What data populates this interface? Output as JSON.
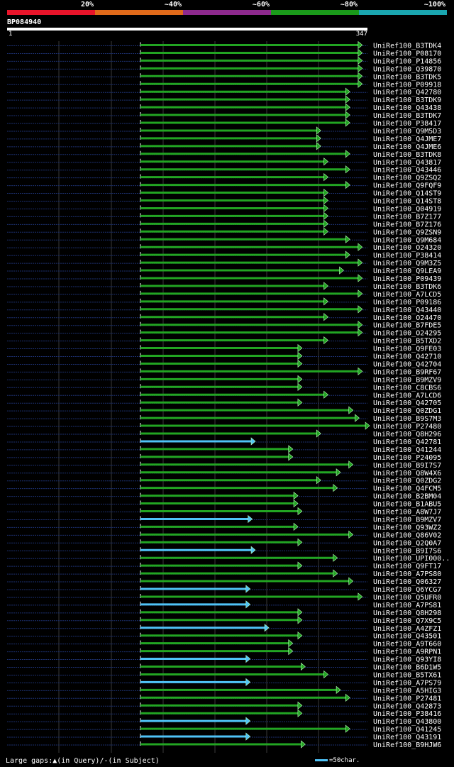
{
  "legend": {
    "segments": [
      {
        "color": "#e8142a"
      },
      {
        "color": "#e06a1a"
      },
      {
        "color": "#8e2a8e"
      },
      {
        "color": "#1a9a1a"
      },
      {
        "color": "#1aa6b0"
      }
    ],
    "labels": [
      "20%",
      "~40%",
      "~60%",
      "~80%",
      "~100%"
    ]
  },
  "query": {
    "name": "BP084940",
    "start": "1",
    "end": "347",
    "length": 347
  },
  "colors": {
    "green": "#22a522",
    "cyan": "#4fc3f7",
    "dotted": "#1c3070",
    "grid": "#3a3a3a"
  },
  "hits": [
    {
      "label": "UniRef100_B3TDK4",
      "end": 338,
      "color": "green"
    },
    {
      "label": "UniRef100_P08170",
      "end": 338,
      "color": "green"
    },
    {
      "label": "UniRef100_P14856",
      "end": 338,
      "color": "green"
    },
    {
      "label": "UniRef100_Q39870",
      "end": 338,
      "color": "green"
    },
    {
      "label": "UniRef100_B3TDK5",
      "end": 338,
      "color": "green"
    },
    {
      "label": "UniRef100_P09918",
      "end": 338,
      "color": "green"
    },
    {
      "label": "UniRef100_Q42780",
      "end": 326,
      "color": "green"
    },
    {
      "label": "UniRef100_B3TDK9",
      "end": 326,
      "color": "green"
    },
    {
      "label": "UniRef100_Q43438",
      "end": 326,
      "color": "green"
    },
    {
      "label": "UniRef100_B3TDK7",
      "end": 326,
      "color": "green"
    },
    {
      "label": "UniRef100_P38417",
      "end": 326,
      "color": "green"
    },
    {
      "label": "UniRef100_Q9M5D3",
      "end": 298,
      "color": "green"
    },
    {
      "label": "UniRef100_Q4JME7",
      "end": 298,
      "color": "green"
    },
    {
      "label": "UniRef100_Q4JME6",
      "end": 298,
      "color": "green"
    },
    {
      "label": "UniRef100_B3TDK8",
      "end": 326,
      "color": "green"
    },
    {
      "label": "UniRef100_Q43817",
      "end": 305,
      "color": "green"
    },
    {
      "label": "UniRef100_Q43446",
      "end": 326,
      "color": "green"
    },
    {
      "label": "UniRef100_Q9ZSQ2",
      "end": 305,
      "color": "green"
    },
    {
      "label": "UniRef100_Q9FQF9",
      "end": 326,
      "color": "green"
    },
    {
      "label": "UniRef100_Q14ST9",
      "end": 305,
      "color": "green"
    },
    {
      "label": "UniRef100_Q14ST8",
      "end": 305,
      "color": "green"
    },
    {
      "label": "UniRef100_Q04919",
      "end": 305,
      "color": "green"
    },
    {
      "label": "UniRef100_B7Z177",
      "end": 305,
      "color": "green"
    },
    {
      "label": "UniRef100_B7Z176",
      "end": 305,
      "color": "green"
    },
    {
      "label": "UniRef100_Q9ZSN9",
      "end": 305,
      "color": "green"
    },
    {
      "label": "UniRef100_Q9M684",
      "end": 326,
      "color": "green"
    },
    {
      "label": "UniRef100_O24320",
      "end": 338,
      "color": "green"
    },
    {
      "label": "UniRef100_P38414",
      "end": 326,
      "color": "green"
    },
    {
      "label": "UniRef100_Q9M3Z5",
      "end": 338,
      "color": "green"
    },
    {
      "label": "UniRef100_Q9LEA9",
      "end": 320,
      "color": "green"
    },
    {
      "label": "UniRef100_P09439",
      "end": 338,
      "color": "green"
    },
    {
      "label": "UniRef100_B3TDK6",
      "end": 305,
      "color": "green"
    },
    {
      "label": "UniRef100_A7LCD5",
      "end": 338,
      "color": "green"
    },
    {
      "label": "UniRef100_P09186",
      "end": 305,
      "color": "green"
    },
    {
      "label": "UniRef100_Q43440",
      "end": 338,
      "color": "green"
    },
    {
      "label": "UniRef100_O24470",
      "end": 305,
      "color": "green"
    },
    {
      "label": "UniRef100_B7FDE5",
      "end": 338,
      "color": "green"
    },
    {
      "label": "UniRef100_O24295",
      "end": 338,
      "color": "green"
    },
    {
      "label": "UniRef100_B5TXD2",
      "end": 305,
      "color": "green"
    },
    {
      "label": "UniRef100_Q9FE03",
      "end": 280,
      "color": "green"
    },
    {
      "label": "UniRef100_Q42710",
      "end": 280,
      "color": "green"
    },
    {
      "label": "UniRef100_Q42704",
      "end": 280,
      "color": "green"
    },
    {
      "label": "UniRef100_B9RF67",
      "end": 338,
      "color": "green"
    },
    {
      "label": "UniRef100_B9MZV9",
      "end": 280,
      "color": "green"
    },
    {
      "label": "UniRef100_C8CBS6",
      "end": 280,
      "color": "green"
    },
    {
      "label": "UniRef100_A7LCD6",
      "end": 305,
      "color": "green"
    },
    {
      "label": "UniRef100_Q42705",
      "end": 280,
      "color": "green"
    },
    {
      "label": "UniRef100_Q0ZDG1",
      "end": 329,
      "color": "green"
    },
    {
      "label": "UniRef100_B9S7M3",
      "end": 335,
      "color": "green"
    },
    {
      "label": "UniRef100_P27480",
      "end": 345,
      "color": "green"
    },
    {
      "label": "UniRef100_Q8H296",
      "end": 298,
      "color": "green"
    },
    {
      "label": "UniRef100_Q42781",
      "end": 235,
      "color": "cyan"
    },
    {
      "label": "UniRef100_Q41244",
      "end": 271,
      "color": "green"
    },
    {
      "label": "UniRef100_P24095",
      "end": 271,
      "color": "green"
    },
    {
      "label": "UniRef100_B9I7S7",
      "end": 329,
      "color": "green"
    },
    {
      "label": "UniRef100_Q8W4X6",
      "end": 317,
      "color": "green"
    },
    {
      "label": "UniRef100_Q0ZDG2",
      "end": 298,
      "color": "green"
    },
    {
      "label": "UniRef100_Q4FCM5",
      "end": 314,
      "color": "green"
    },
    {
      "label": "UniRef100_B2BM04",
      "end": 276,
      "color": "green"
    },
    {
      "label": "UniRef100_B1ABU5",
      "end": 276,
      "color": "green"
    },
    {
      "label": "UniRef100_A8W7J7",
      "end": 280,
      "color": "green"
    },
    {
      "label": "UniRef100_B9MZV7",
      "end": 232,
      "color": "cyan"
    },
    {
      "label": "UniRef100_Q93WZ2",
      "end": 276,
      "color": "green"
    },
    {
      "label": "UniRef100_Q86V02",
      "end": 329,
      "color": "green"
    },
    {
      "label": "UniRef100_Q2Q0A7",
      "end": 280,
      "color": "green"
    },
    {
      "label": "UniRef100_B9I7S6",
      "end": 235,
      "color": "cyan"
    },
    {
      "label": "UniRef100_UPI000..",
      "end": 314,
      "color": "green"
    },
    {
      "label": "UniRef100_Q9FT17",
      "end": 280,
      "color": "green"
    },
    {
      "label": "UniRef100_A7PS80",
      "end": 314,
      "color": "green"
    },
    {
      "label": "UniRef100_Q06327",
      "end": 329,
      "color": "green"
    },
    {
      "label": "UniRef100_Q6YCG7",
      "end": 230,
      "color": "cyan"
    },
    {
      "label": "UniRef100_Q5UFR0",
      "end": 338,
      "color": "green"
    },
    {
      "label": "UniRef100_A7PS81",
      "end": 230,
      "color": "cyan"
    },
    {
      "label": "UniRef100_Q8H298",
      "end": 280,
      "color": "green"
    },
    {
      "label": "UniRef100_Q7X9C5",
      "end": 280,
      "color": "green"
    },
    {
      "label": "UniRef100_A4ZFZ1",
      "end": 248,
      "color": "cyan"
    },
    {
      "label": "UniRef100_Q43501",
      "end": 280,
      "color": "green"
    },
    {
      "label": "UniRef100_A9T660",
      "end": 271,
      "color": "green"
    },
    {
      "label": "UniRef100_A9RPN1",
      "end": 271,
      "color": "green"
    },
    {
      "label": "UniRef100_Q93YI8",
      "end": 230,
      "color": "cyan"
    },
    {
      "label": "UniRef100_B6D1W5",
      "end": 283,
      "color": "green"
    },
    {
      "label": "UniRef100_B5TX61",
      "end": 305,
      "color": "green"
    },
    {
      "label": "UniRef100_A7PS79",
      "end": 230,
      "color": "cyan"
    },
    {
      "label": "UniRef100_A5HIG3",
      "end": 317,
      "color": "green"
    },
    {
      "label": "UniRef100_P27481",
      "end": 326,
      "color": "green"
    },
    {
      "label": "UniRef100_Q42873",
      "end": 280,
      "color": "green"
    },
    {
      "label": "UniRef100_P38416",
      "end": 280,
      "color": "green"
    },
    {
      "label": "UniRef100_Q43800",
      "end": 230,
      "color": "cyan"
    },
    {
      "label": "UniRef100_Q41245",
      "end": 326,
      "color": "green"
    },
    {
      "label": "UniRef100_Q43191",
      "end": 230,
      "color": "cyan"
    },
    {
      "label": "UniRef100_B9HJW6",
      "end": 283,
      "color": "green"
    }
  ],
  "footer": {
    "gaps_text": "Large gaps:▲(in Query)/-(in Subject)",
    "scale_text": "=50char."
  }
}
